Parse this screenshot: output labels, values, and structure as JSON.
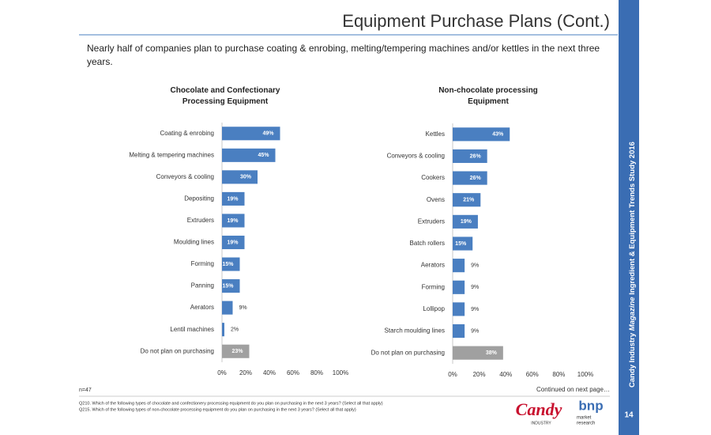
{
  "header": {
    "title": "Equipment Purchase Plans (Cont.)",
    "subtitle": "Nearly half of companies plan to purchase coating & enrobing, melting/tempering machines and/or kettles in the next three years."
  },
  "chart_data": [
    {
      "type": "bar",
      "orientation": "horizontal",
      "title": "Chocolate and Confectionary Processing Equipment",
      "categories": [
        "Coating & enrobing",
        "Melting & tempering machines",
        "Conveyors & cooling",
        "Depositing",
        "Extruders",
        "Moulding lines",
        "Forming",
        "Panning",
        "Aerators",
        "Lentil machines",
        "Do not plan on purchasing"
      ],
      "values": [
        49,
        45,
        30,
        19,
        19,
        19,
        15,
        15,
        9,
        2,
        23
      ],
      "value_labels": [
        "49%",
        "45%",
        "30%",
        "19%",
        "19%",
        "19%",
        "15%",
        "15%",
        "9%",
        "2%",
        "23%"
      ],
      "colors": [
        "#4a7fc1",
        "#4a7fc1",
        "#4a7fc1",
        "#4a7fc1",
        "#4a7fc1",
        "#4a7fc1",
        "#4a7fc1",
        "#4a7fc1",
        "#4a7fc1",
        "#4a7fc1",
        "#a0a0a0"
      ],
      "xlim": [
        0,
        100
      ],
      "xticks": [
        {
          "value": 0,
          "label": "0%"
        },
        {
          "value": 20,
          "label": "20%"
        },
        {
          "value": 40,
          "label": "40%"
        },
        {
          "value": 60,
          "label": "60%"
        },
        {
          "value": 80,
          "label": "80%"
        },
        {
          "value": 100,
          "label": "100%"
        }
      ],
      "grid": false
    },
    {
      "type": "bar",
      "orientation": "horizontal",
      "title": "Non-chocolate processing Equipment",
      "categories": [
        "Kettles",
        "Conveyors & cooling",
        "Cookers",
        "Ovens",
        "Extruders",
        "Batch rollers",
        "Aerators",
        "Forming",
        "Lollipop",
        "Starch moulding lines",
        "Do not plan on purchasing"
      ],
      "values": [
        43,
        26,
        26,
        21,
        19,
        15,
        9,
        9,
        9,
        9,
        38
      ],
      "value_labels": [
        "43%",
        "26%",
        "26%",
        "21%",
        "19%",
        "15%",
        "9%",
        "9%",
        "9%",
        "9%",
        "38%"
      ],
      "colors": [
        "#4a7fc1",
        "#4a7fc1",
        "#4a7fc1",
        "#4a7fc1",
        "#4a7fc1",
        "#4a7fc1",
        "#4a7fc1",
        "#4a7fc1",
        "#4a7fc1",
        "#4a7fc1",
        "#a0a0a0"
      ],
      "xlim": [
        0,
        100
      ],
      "xticks": [
        {
          "value": 0,
          "label": "0%"
        },
        {
          "value": 20,
          "label": "20%"
        },
        {
          "value": 40,
          "label": "40%"
        },
        {
          "value": 60,
          "label": "60%"
        },
        {
          "value": 80,
          "label": "80%"
        },
        {
          "value": 100,
          "label": "100%"
        }
      ],
      "grid": false
    }
  ],
  "footer": {
    "n": "n=47",
    "continued": "Continued on next page…",
    "questions": [
      "Q210. Which of the following types of chocolate and confectionery processing equipment do you plan on purchasing in the next 3 years? (Select all that apply)",
      "Q215. Which of the following types of non-chocolate processing equipment do you plan on purchasing in the next 3 years? (Select all that apply)"
    ]
  },
  "sidebar": {
    "parts": [
      "Candy Industry",
      "Magazine",
      "Ingredient & Equipment Trends Study 2016"
    ],
    "page": "14"
  },
  "logos": {
    "candy": "Candy",
    "industry": "INDUSTRY",
    "bnp": "bnp",
    "market": "market",
    "research": "research"
  }
}
